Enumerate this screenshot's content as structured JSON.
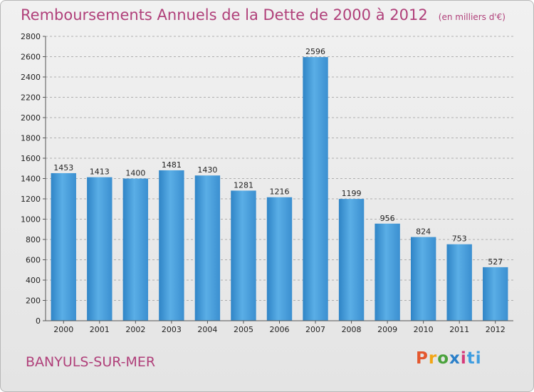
{
  "title": "Remboursements Annuels de la Dette de 2000 à 2012",
  "unit_note": "(en milliers d'€)",
  "town": "BANYULS-SUR-MER",
  "logo": "Proxiti",
  "colors": {
    "bar_light": "#5aaee6",
    "bar_dark": "#2f84c6",
    "title": "#b0407a"
  },
  "chart_data": {
    "type": "bar",
    "title": "Remboursements Annuels de la Dette de 2000 à 2012",
    "categories": [
      "2000",
      "2001",
      "2002",
      "2003",
      "2004",
      "2005",
      "2006",
      "2007",
      "2008",
      "2009",
      "2010",
      "2011",
      "2012"
    ],
    "values": [
      1453,
      1413,
      1400,
      1481,
      1430,
      1281,
      1216,
      2596,
      1199,
      956,
      824,
      753,
      527
    ],
    "ylim": [
      0,
      2800
    ],
    "yticks": [
      0,
      200,
      400,
      600,
      800,
      1000,
      1200,
      1400,
      1600,
      1800,
      2000,
      2200,
      2400,
      2600,
      2800
    ],
    "grid": true,
    "data_labels": true
  }
}
